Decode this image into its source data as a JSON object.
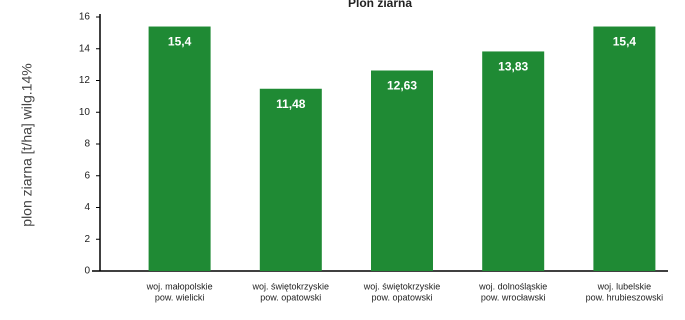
{
  "chart_data": {
    "type": "bar",
    "title": "Plon ziarna",
    "y_label": "plon ziarna [t/ha] wilg.14%",
    "categories": [
      [
        "woj. małopolskie",
        "pow. wielicki"
      ],
      [
        "woj. świętokrzyskie",
        "pow. opatowski"
      ],
      [
        "woj. świętokrzyskie",
        "pow. opatowski"
      ],
      [
        "woj. dolnośląskie",
        "pow. wrocławski"
      ],
      [
        "woj. lubelskie",
        "pow. hrubieszowski"
      ]
    ],
    "values": [
      15.4,
      11.48,
      12.63,
      13.83,
      15.4
    ],
    "value_labels": [
      "15,4",
      "11,48",
      "12,63",
      "13,83",
      "15,4"
    ],
    "color": "#1f8a34",
    "ylim": [
      0,
      16
    ],
    "yticks": [
      0,
      2,
      4,
      6,
      8,
      10,
      12,
      14,
      16
    ]
  }
}
